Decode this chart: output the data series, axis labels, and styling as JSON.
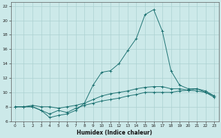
{
  "xlabel": "Humidex (Indice chaleur)",
  "bg_color": "#cce9e9",
  "grid_color": "#aad0d0",
  "line_color": "#1a7070",
  "xlim": [
    -0.5,
    23.5
  ],
  "ylim": [
    6,
    22.5
  ],
  "xticks": [
    0,
    1,
    2,
    3,
    4,
    5,
    6,
    7,
    8,
    9,
    10,
    11,
    12,
    13,
    14,
    15,
    16,
    17,
    18,
    19,
    20,
    21,
    22,
    23
  ],
  "yticks": [
    6,
    8,
    10,
    12,
    14,
    16,
    18,
    20,
    22
  ],
  "line1_x": [
    0,
    1,
    2,
    3,
    4,
    5,
    6,
    7,
    8,
    9,
    10,
    11,
    12,
    13,
    14,
    15,
    16,
    17,
    18,
    19,
    20,
    21,
    22,
    23
  ],
  "line1_y": [
    8.0,
    8.0,
    8.0,
    7.5,
    7.0,
    7.5,
    7.2,
    7.8,
    8.2,
    8.5,
    8.8,
    9.0,
    9.2,
    9.5,
    9.7,
    10.0,
    10.0,
    10.0,
    10.0,
    10.2,
    10.3,
    10.5,
    10.2,
    9.5
  ],
  "line2_x": [
    0,
    1,
    2,
    3,
    4,
    5,
    6,
    7,
    8,
    9,
    10,
    11,
    12,
    13,
    14,
    15,
    16,
    17,
    18,
    19,
    20,
    21,
    22,
    23
  ],
  "line2_y": [
    8.0,
    8.0,
    8.2,
    8.0,
    8.0,
    7.8,
    8.0,
    8.2,
    8.5,
    9.0,
    9.5,
    9.8,
    10.0,
    10.2,
    10.5,
    10.7,
    10.8,
    10.8,
    10.5,
    10.5,
    10.3,
    10.2,
    10.0,
    9.3
  ],
  "line3_x": [
    0,
    1,
    2,
    3,
    4,
    5,
    6,
    7,
    8,
    9,
    10,
    11,
    12,
    13,
    14,
    15,
    16,
    17,
    18,
    19,
    20,
    21,
    22,
    23
  ],
  "line3_y": [
    8.0,
    8.0,
    8.0,
    7.5,
    6.5,
    6.8,
    7.0,
    7.5,
    8.5,
    11.0,
    12.8,
    13.0,
    14.0,
    15.8,
    17.5,
    20.8,
    21.5,
    18.5,
    13.0,
    11.0,
    10.5,
    10.5,
    10.0,
    9.5
  ]
}
